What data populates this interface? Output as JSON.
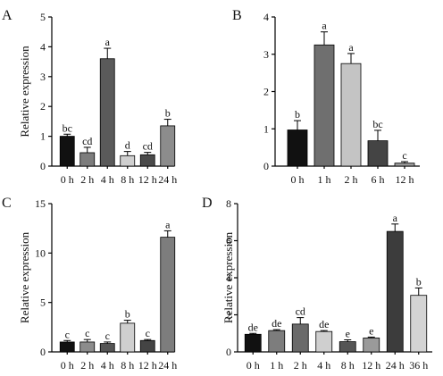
{
  "chart_data": [
    {
      "panel": "A",
      "type": "bar",
      "ylabel": "Relative expression",
      "ylim": [
        0,
        5
      ],
      "yticks": [
        0,
        1,
        2,
        3,
        4,
        5
      ],
      "categories": [
        "0 h",
        "2 h",
        "4 h",
        "8 h",
        "12 h",
        "24 h"
      ],
      "values": [
        1.0,
        0.45,
        3.6,
        0.35,
        0.38,
        1.35
      ],
      "errors": [
        0.07,
        0.18,
        0.35,
        0.14,
        0.08,
        0.22
      ],
      "letters": [
        "bc",
        "cd",
        "a",
        "d",
        "cd",
        "b"
      ],
      "colors": [
        "#111111",
        "#7d7d7d",
        "#5a5a5a",
        "#cfcfcf",
        "#4a4a4a",
        "#8c8c8c"
      ]
    },
    {
      "panel": "B",
      "type": "bar",
      "ylabel": "",
      "ylim": [
        0,
        4
      ],
      "yticks": [
        0,
        1,
        2,
        3,
        4
      ],
      "categories": [
        "0 h",
        "1 h",
        "2 h",
        "6 h",
        "12 h"
      ],
      "values": [
        0.97,
        3.25,
        2.75,
        0.68,
        0.08
      ],
      "errors": [
        0.25,
        0.35,
        0.27,
        0.28,
        0.04
      ],
      "letters": [
        "b",
        "a",
        "a",
        "bc",
        "c"
      ],
      "colors": [
        "#111111",
        "#6f6f6f",
        "#c4c4c4",
        "#444444",
        "#9a9a9a"
      ]
    },
    {
      "panel": "C",
      "type": "bar",
      "ylabel": "Relative expression",
      "ylim": [
        0,
        15
      ],
      "yticks": [
        0,
        5,
        10,
        15
      ],
      "categories": [
        "0 h",
        "2 h",
        "4 h",
        "8 h",
        "12 h",
        "24 h"
      ],
      "values": [
        1.0,
        1.0,
        0.85,
        2.9,
        1.15,
        11.6
      ],
      "errors": [
        0.15,
        0.25,
        0.15,
        0.3,
        0.1,
        0.65
      ],
      "letters": [
        "c",
        "c",
        "c",
        "b",
        "c",
        "a"
      ],
      "colors": [
        "#111111",
        "#8c8c8c",
        "#555555",
        "#cfcfcf",
        "#444444",
        "#7d7d7d"
      ]
    },
    {
      "panel": "D",
      "type": "bar",
      "ylabel": "Relative expression",
      "ylim": [
        0,
        8
      ],
      "yticks": [
        0,
        2,
        4,
        6,
        8
      ],
      "categories": [
        "0 h",
        "1 h",
        "2 h",
        "4 h",
        "8 h",
        "12 h",
        "24 h",
        "36 h"
      ],
      "values": [
        0.95,
        1.15,
        1.5,
        1.1,
        0.55,
        0.75,
        6.5,
        3.05
      ],
      "errors": [
        0.05,
        0.05,
        0.35,
        0.05,
        0.1,
        0.05,
        0.4,
        0.4
      ],
      "letters": [
        "de",
        "de",
        "cd",
        "de",
        "e",
        "e",
        "a",
        "b"
      ],
      "colors": [
        "#111111",
        "#7d7d7d",
        "#6a6a6a",
        "#cfcfcf",
        "#555555",
        "#9a9a9a",
        "#3c3c3c",
        "#d4d4d4"
      ]
    }
  ]
}
